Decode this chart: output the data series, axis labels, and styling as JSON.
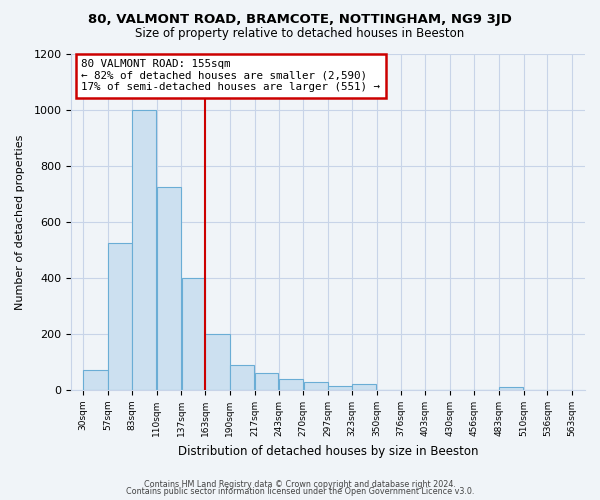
{
  "title": "80, VALMONT ROAD, BRAMCOTE, NOTTINGHAM, NG9 3JD",
  "subtitle": "Size of property relative to detached houses in Beeston",
  "xlabel": "Distribution of detached houses by size in Beeston",
  "ylabel": "Number of detached properties",
  "bar_left_edges": [
    30,
    57,
    83,
    110,
    137,
    163,
    190,
    217,
    243,
    270,
    297,
    323,
    350,
    376,
    403,
    430,
    456,
    483,
    510,
    536
  ],
  "bar_widths": [
    27,
    26,
    27,
    27,
    26,
    27,
    27,
    26,
    27,
    27,
    26,
    27,
    26,
    27,
    27,
    26,
    27,
    27,
    26,
    27
  ],
  "bar_heights": [
    70,
    525,
    1000,
    725,
    400,
    200,
    90,
    60,
    40,
    30,
    15,
    20,
    0,
    0,
    0,
    0,
    0,
    10,
    0,
    0
  ],
  "bar_color": "#cce0f0",
  "bar_edge_color": "#6aadd5",
  "tick_labels": [
    "30sqm",
    "57sqm",
    "83sqm",
    "110sqm",
    "137sqm",
    "163sqm",
    "190sqm",
    "217sqm",
    "243sqm",
    "270sqm",
    "297sqm",
    "323sqm",
    "350sqm",
    "376sqm",
    "403sqm",
    "430sqm",
    "456sqm",
    "483sqm",
    "510sqm",
    "536sqm",
    "563sqm"
  ],
  "tick_positions": [
    30,
    57,
    83,
    110,
    137,
    163,
    190,
    217,
    243,
    270,
    297,
    323,
    350,
    376,
    403,
    430,
    456,
    483,
    510,
    536,
    563
  ],
  "ylim": [
    0,
    1200
  ],
  "xlim": [
    17,
    577
  ],
  "vline_x": 163,
  "vline_color": "#cc0000",
  "annotation_title": "80 VALMONT ROAD: 155sqm",
  "annotation_line1": "← 82% of detached houses are smaller (2,590)",
  "annotation_line2": "17% of semi-detached houses are larger (551) →",
  "annotation_box_color": "#cc0000",
  "annotation_box_fill": "#ffffff",
  "grid_color": "#c8d4e8",
  "background_color": "#f0f4f8",
  "plot_bg_color": "#f0f4f8",
  "footer_line1": "Contains HM Land Registry data © Crown copyright and database right 2024.",
  "footer_line2": "Contains public sector information licensed under the Open Government Licence v3.0."
}
